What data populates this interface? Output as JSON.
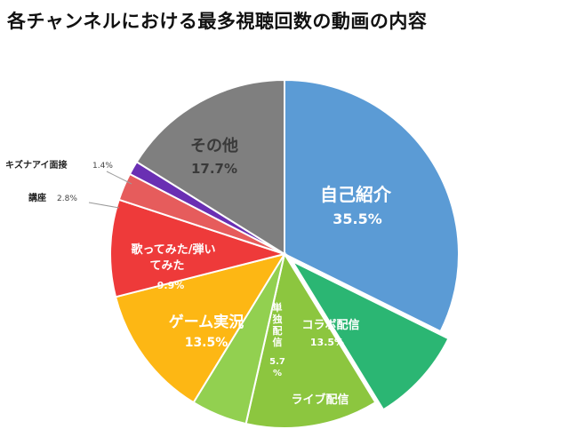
{
  "title": "各チャンネルにおける最多視聴回数の動画の内容",
  "chart_data": {
    "type": "pie",
    "title": "各チャンネルにおける最多視聴回数の動画の内容",
    "slices": [
      {
        "label": "自己紹介",
        "value": 35.5,
        "value_text": "35.5%",
        "color": "#5B9BD5"
      },
      {
        "label": "ライブ配信",
        "value": 9.8,
        "value_text": "",
        "color": "#2BB673"
      },
      {
        "label": "コラボ配信",
        "value": 13.5,
        "value_text": "13.5%",
        "color": "#8CC63F"
      },
      {
        "label": "単独配信",
        "value": 5.7,
        "value_text": "5.7%",
        "color": "#92D050"
      },
      {
        "label": "ゲーム実況",
        "value": 13.5,
        "value_text": "13.5%",
        "color": "#FDB714"
      },
      {
        "label": "歌ってみた/弾いてみた",
        "value": 9.9,
        "value_text": "9.9%",
        "color": "#EE3A3A"
      },
      {
        "label": "講座",
        "value": 2.8,
        "value_text": "2.8%",
        "color": "#E65C5C"
      },
      {
        "label": "キズナアイ面接",
        "value": 1.4,
        "value_text": "1.4%",
        "color": "#6A2FB3"
      },
      {
        "label": "その他",
        "value": 17.7,
        "value_text": "17.7%",
        "color": "#7F7F7F"
      }
    ],
    "inner_labels": {
      "jiko_name": "自己紹介",
      "jiko_val": "35.5%",
      "collab": "コラボ配信",
      "collab_val": "13.5%",
      "live": "ライブ配信",
      "tandoku_1": "単",
      "tandoku_2": "独",
      "tandoku_3": "配",
      "tandoku_4": "信",
      "tandoku_val_1": "5.7",
      "tandoku_val_2": "%",
      "game": "ゲーム実況",
      "game_val": "13.5%",
      "uta_1": "歌ってみた/弾い",
      "uta_2": "てみた",
      "uta_val": "9.9%",
      "other": "その他",
      "other_val": "17.7%"
    },
    "callouts": {
      "kizuna": "キズナアイ面接",
      "kizuna_val": "1.4%",
      "koza": "講座",
      "koza_val": "2.8%"
    }
  }
}
